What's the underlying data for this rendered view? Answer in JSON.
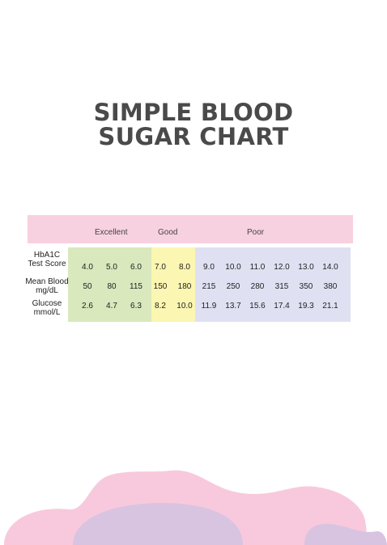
{
  "title": {
    "line1": "SIMPLE BLOOD",
    "line2": "SUGAR CHART"
  },
  "categories": [
    "Excellent",
    "Good",
    "Poor"
  ],
  "rows": [
    {
      "label1": "HbA1C",
      "label2": "Test Score",
      "values": [
        "4.0",
        "5.0",
        "6.0",
        "7.0",
        "8.0",
        "9.0",
        "10.0",
        "11.0",
        "12.0",
        "13.0",
        "14.0"
      ]
    },
    {
      "label1": "Mean Blood",
      "label2": "mg/dL",
      "values": [
        "50",
        "80",
        "115",
        "150",
        "180",
        "215",
        "250",
        "280",
        "315",
        "350",
        "380"
      ]
    },
    {
      "label1": "Glucose",
      "label2": "mmol/L",
      "values": [
        "2.6",
        "4.7",
        "6.3",
        "8.2",
        "10.0",
        "11.9",
        "13.7",
        "15.6",
        "17.4",
        "19.3",
        "21.1"
      ]
    }
  ],
  "colors": {
    "header": "#f8d1e0",
    "excellent": "#d9e8bd",
    "good": "#fbf6b1",
    "poor": "#dfe1f2",
    "title": "#4a4a4a"
  }
}
